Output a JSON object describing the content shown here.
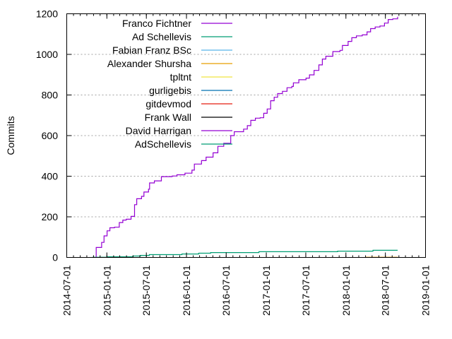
{
  "chart_data": {
    "type": "line",
    "title": "",
    "xlabel": "",
    "ylabel": "Commits",
    "xlim": [
      "2014-07-01",
      "2019-01-01"
    ],
    "ylim": [
      0,
      1200
    ],
    "x_ticks": [
      "2014-07-01",
      "2015-01-01",
      "2015-07-01",
      "2016-01-01",
      "2016-07-01",
      "2017-01-01",
      "2017-07-01",
      "2018-01-01",
      "2018-07-01",
      "2019-01-01"
    ],
    "y_ticks": [
      "0",
      "200",
      "400",
      "600",
      "800",
      "1000",
      "1200"
    ],
    "grid": "horizontal dotted",
    "legend_placement": "top-left",
    "step": true,
    "series": [
      {
        "name": "Franco Fichtner",
        "color": "#9400d3",
        "points": [
          [
            "2014-11-13",
            0
          ],
          [
            "2014-11-13",
            49
          ],
          [
            "2014-12-08",
            74
          ],
          [
            "2014-12-19",
            106
          ],
          [
            "2015-01-02",
            131
          ],
          [
            "2015-01-15",
            146
          ],
          [
            "2015-02-05",
            149
          ],
          [
            "2015-02-27",
            172
          ],
          [
            "2015-03-15",
            184
          ],
          [
            "2015-03-31",
            188
          ],
          [
            "2015-04-22",
            202
          ],
          [
            "2015-05-08",
            260
          ],
          [
            "2015-05-18",
            289
          ],
          [
            "2015-06-09",
            301
          ],
          [
            "2015-06-20",
            322
          ],
          [
            "2015-07-11",
            336
          ],
          [
            "2015-07-16",
            367
          ],
          [
            "2015-08-07",
            377
          ],
          [
            "2015-09-08",
            398
          ],
          [
            "2015-10-27",
            401
          ],
          [
            "2015-11-18",
            407
          ],
          [
            "2015-12-25",
            415
          ],
          [
            "2016-01-26",
            430
          ],
          [
            "2016-02-06",
            460
          ],
          [
            "2016-03-10",
            477
          ],
          [
            "2016-03-31",
            494
          ],
          [
            "2016-05-02",
            515
          ],
          [
            "2016-05-24",
            547
          ],
          [
            "2016-06-20",
            562
          ],
          [
            "2016-07-22",
            600
          ],
          [
            "2016-08-07",
            619
          ],
          [
            "2016-09-19",
            632
          ],
          [
            "2016-10-06",
            649
          ],
          [
            "2016-10-22",
            675
          ],
          [
            "2016-11-12",
            686
          ],
          [
            "2016-12-04",
            688
          ],
          [
            "2016-12-20",
            710
          ],
          [
            "2017-01-05",
            731
          ],
          [
            "2017-01-21",
            772
          ],
          [
            "2017-02-06",
            789
          ],
          [
            "2017-02-22",
            807
          ],
          [
            "2017-03-16",
            818
          ],
          [
            "2017-04-06",
            836
          ],
          [
            "2017-04-28",
            842
          ],
          [
            "2017-05-05",
            860
          ],
          [
            "2017-05-30",
            875
          ],
          [
            "2017-07-02",
            883
          ],
          [
            "2017-07-18",
            899
          ],
          [
            "2017-08-08",
            921
          ],
          [
            "2017-08-30",
            948
          ],
          [
            "2017-09-15",
            977
          ],
          [
            "2017-10-01",
            991
          ],
          [
            "2017-11-02",
            1014
          ],
          [
            "2017-12-05",
            1020
          ],
          [
            "2017-12-16",
            1044
          ],
          [
            "2018-01-11",
            1064
          ],
          [
            "2018-01-28",
            1082
          ],
          [
            "2018-02-18",
            1091
          ],
          [
            "2018-03-17",
            1096
          ],
          [
            "2018-04-08",
            1111
          ],
          [
            "2018-04-24",
            1127
          ],
          [
            "2018-05-15",
            1135
          ],
          [
            "2018-06-06",
            1140
          ],
          [
            "2018-06-27",
            1154
          ],
          [
            "2018-07-14",
            1172
          ],
          [
            "2018-08-04",
            1175
          ],
          [
            "2018-08-26",
            1185
          ]
        ]
      },
      {
        "name": "Ad Schellevis",
        "color": "#009e73",
        "points": [
          [
            "2014-10-26",
            1
          ],
          [
            "2015-01-02",
            3
          ],
          [
            "2015-04-30",
            7
          ],
          [
            "2015-06-04",
            10
          ],
          [
            "2015-07-15",
            14
          ],
          [
            "2015-12-11",
            17
          ],
          [
            "2016-02-26",
            21
          ],
          [
            "2016-04-21",
            24
          ],
          [
            "2016-11-28",
            28
          ],
          [
            "2017-11-24",
            31
          ],
          [
            "2018-05-05",
            35
          ],
          [
            "2018-08-26",
            35
          ]
        ]
      },
      {
        "name": "Fabian Franz BSc",
        "color": "#56b4e9",
        "points": []
      },
      {
        "name": "Alexander Shursha",
        "color": "#e69f00",
        "points": [
          [
            "2018-03-30",
            1
          ],
          [
            "2018-08-26",
            2
          ]
        ]
      },
      {
        "name": "tpltnt",
        "color": "#f0e442",
        "points": []
      },
      {
        "name": "gurligebis",
        "color": "#0072b2",
        "points": []
      },
      {
        "name": "gitdevmod",
        "color": "#e51e10",
        "points": []
      },
      {
        "name": "Frank Wall",
        "color": "#000000",
        "points": []
      },
      {
        "name": "David Harrigan",
        "color": "#9400d3",
        "points": []
      },
      {
        "name": "AdSchellevis",
        "color": "#009e73",
        "points": []
      }
    ]
  }
}
